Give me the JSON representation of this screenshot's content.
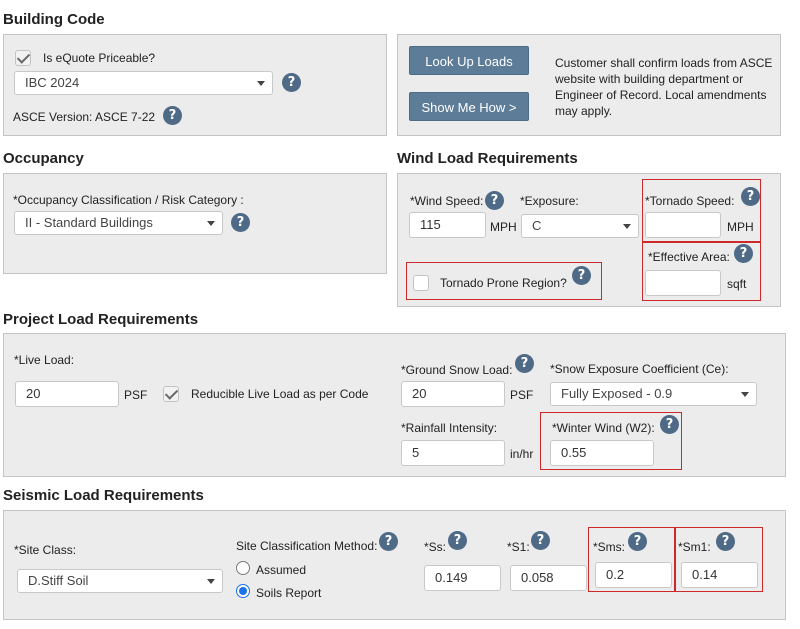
{
  "building_code": {
    "title": "Building Code",
    "priceable_label": "Is eQuote Priceable?",
    "priceable_checked": true,
    "code_value": "IBC 2024",
    "asce_version": "ASCE Version: ASCE 7-22",
    "lookup_button": "Look Up Loads",
    "show_me_button": "Show Me How >",
    "note": "Customer shall confirm loads from ASCE website with building department or Engineer of Record. Local amendments may apply."
  },
  "occupancy": {
    "title": "Occupancy",
    "classification_label": "*Occupancy Classification / Risk Category :",
    "classification_value": "II - Standard Buildings"
  },
  "wind": {
    "title": "Wind Load Requirements",
    "speed_label": "*Wind Speed:",
    "speed_value": "115",
    "speed_unit": "MPH",
    "exposure_label": "*Exposure:",
    "exposure_value": "C",
    "tornado_speed_label": "*Tornado Speed:",
    "tornado_speed_value": "",
    "tornado_speed_unit": "MPH",
    "effective_area_label": "*Effective Area:",
    "effective_area_value": "",
    "effective_area_unit": "sqft",
    "tornado_prone_label": "Tornado Prone Region?",
    "tornado_prone_checked": false
  },
  "project_load": {
    "title": "Project Load Requirements",
    "live_load_label": "*Live Load:",
    "live_load_value": "20",
    "live_load_unit": "PSF",
    "reducible_label": "Reducible Live Load as per Code",
    "reducible_checked": true,
    "ground_snow_label": "*Ground Snow Load:",
    "ground_snow_value": "20",
    "ground_snow_unit": "PSF",
    "snow_exposure_label": "*Snow Exposure Coefficient (Ce):",
    "snow_exposure_value": "Fully Exposed - 0.9",
    "rainfall_label": "*Rainfall Intensity:",
    "rainfall_value": "5",
    "rainfall_unit": "in/hr",
    "winter_wind_label": "*Winter Wind (W2):",
    "winter_wind_value": "0.55"
  },
  "seismic": {
    "title": "Seismic Load Requirements",
    "site_class_label": "*Site Class:",
    "site_class_value": "D.Stiff Soil",
    "method_label": "Site Classification Method:",
    "method_options": [
      "Assumed",
      "Soils Report"
    ],
    "method_selected": "Soils Report",
    "ss_label": "*Ss:",
    "ss_value": "0.149",
    "s1_label": "*S1:",
    "s1_value": "0.058",
    "sms_label": "*Sms:",
    "sms_value": "0.2",
    "sm1_label": "*Sm1:",
    "sm1_value": "0.14"
  },
  "icons": {
    "help": "question-circle-icon",
    "dropdown": "chevron-down-icon"
  },
  "colors": {
    "help_icon": "#4f6a86",
    "button": "#5c7c98",
    "highlight_border": "#cc2a2a",
    "panel": "#ececec"
  }
}
